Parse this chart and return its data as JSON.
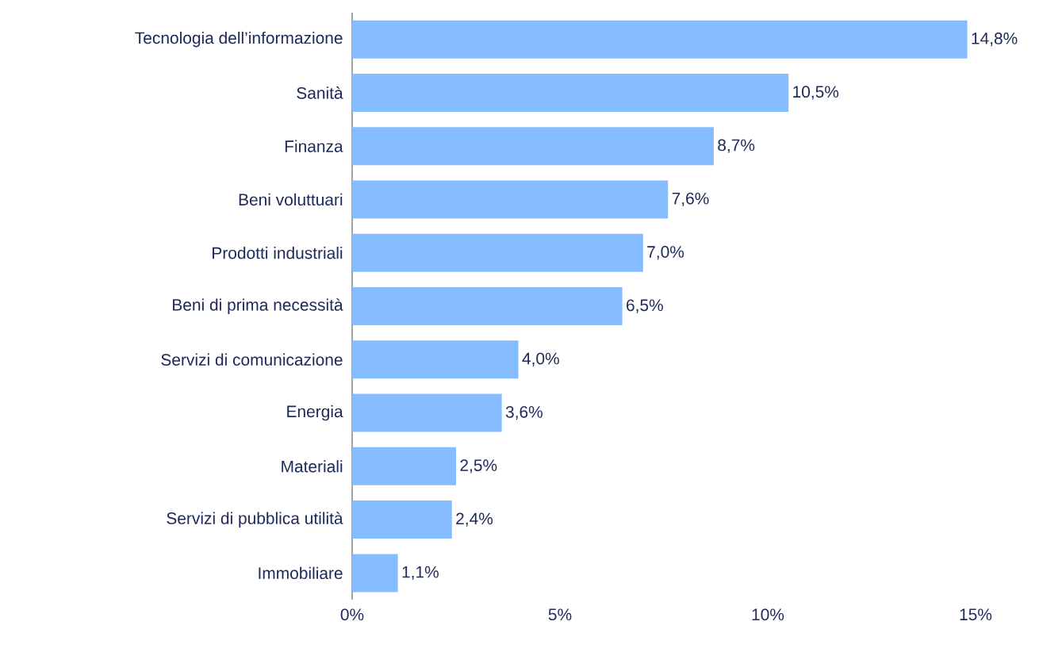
{
  "chart_data": {
    "type": "bar",
    "orientation": "horizontal",
    "categories": [
      "Tecnologia dell’informazione",
      "Sanità",
      "Finanza",
      "Beni voluttuari",
      "Prodotti industriali",
      "Beni di prima necessità",
      "Servizi di comunicazione",
      "Energia",
      "Materiali",
      "Servizi di pubblica utilità",
      "Immobiliare"
    ],
    "values": [
      14.8,
      10.5,
      8.7,
      7.6,
      7.0,
      6.5,
      4.0,
      3.6,
      2.5,
      2.4,
      1.1
    ],
    "value_labels": [
      "14,8%",
      "10,5%",
      "8,7%",
      "7,6%",
      "7,0%",
      "6,5%",
      "4,0%",
      "3,6%",
      "2,5%",
      "2,4%",
      "1,1%"
    ],
    "color": "#85bbff",
    "xlim": [
      0,
      15
    ],
    "xticks": [
      {
        "value": 0,
        "label": "0%"
      },
      {
        "value": 5,
        "label": "5%"
      },
      {
        "value": 10,
        "label": "10%"
      },
      {
        "value": 15,
        "label": "15%"
      }
    ],
    "grid": false
  }
}
